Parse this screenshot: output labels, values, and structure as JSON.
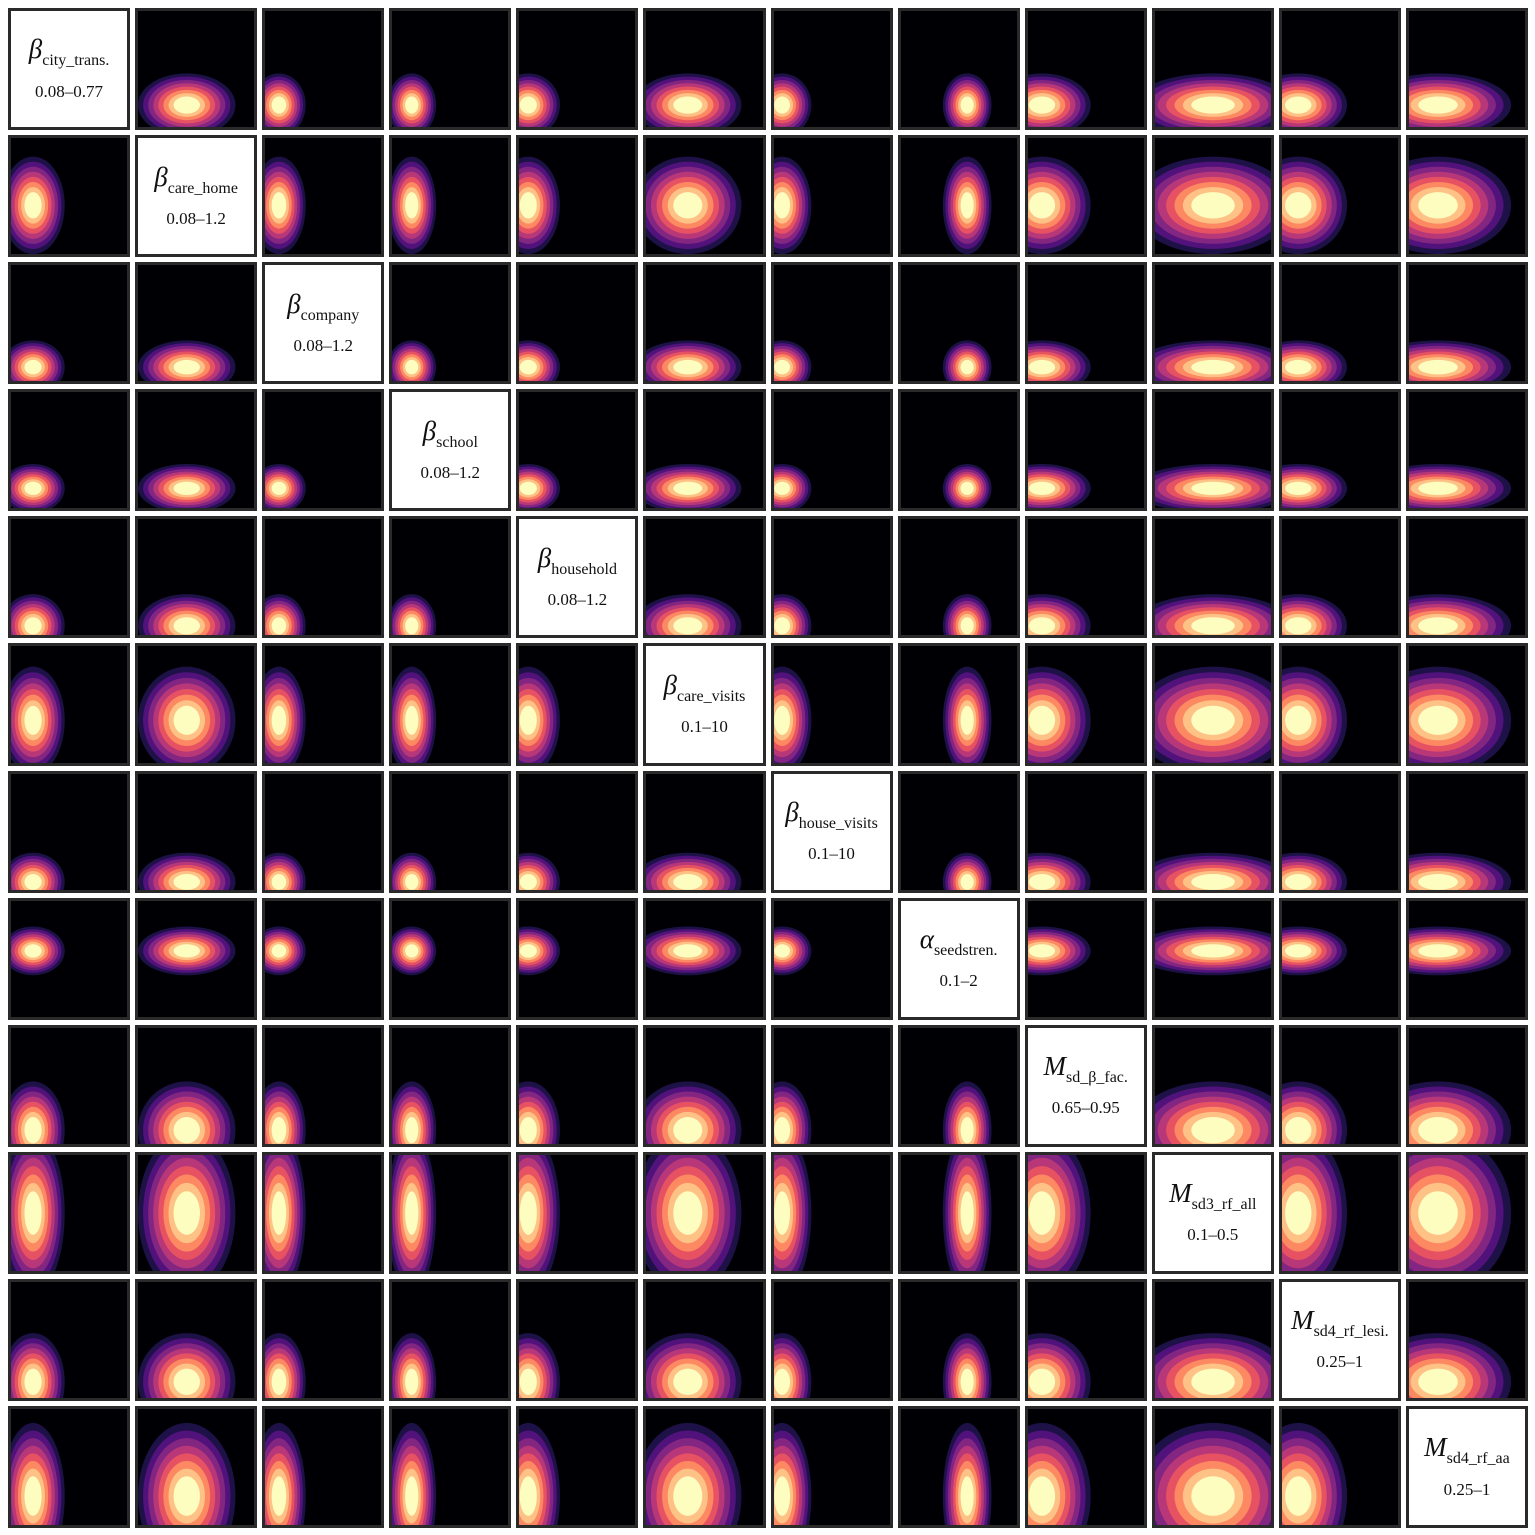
{
  "chart_data": {
    "type": "heatmap",
    "title": "",
    "layout": "pairwise matrix of 2-D posterior density contours; diagonal cells show parameter name and prior range",
    "colormap": [
      "#000004",
      "#1d1147",
      "#51127c",
      "#822681",
      "#b73779",
      "#e75263",
      "#fc8961",
      "#fec287",
      "#fcfdbf"
    ],
    "grid": false,
    "parameters": [
      {
        "symbol": "β",
        "subscript": "city_trans.",
        "range_label": "0.08–0.77",
        "range": [
          0.08,
          0.77
        ]
      },
      {
        "symbol": "β",
        "subscript": "care_home",
        "range_label": "0.08–1.2",
        "range": [
          0.08,
          1.2
        ]
      },
      {
        "symbol": "β",
        "subscript": "company",
        "range_label": "0.08–1.2",
        "range": [
          0.08,
          1.2
        ]
      },
      {
        "symbol": "β",
        "subscript": "school",
        "range_label": "0.08–1.2",
        "range": [
          0.08,
          1.2
        ]
      },
      {
        "symbol": "β",
        "subscript": "household",
        "range_label": "0.08–1.2",
        "range": [
          0.08,
          1.2
        ]
      },
      {
        "symbol": "β",
        "subscript": "care_visits",
        "range_label": "0.1–10",
        "range": [
          0.1,
          10
        ]
      },
      {
        "symbol": "β",
        "subscript": "house_visits",
        "range_label": "0.1–10",
        "range": [
          0.1,
          10
        ]
      },
      {
        "symbol": "α",
        "subscript": "seedstren.",
        "range_label": "0.1–2",
        "range": [
          0.1,
          2
        ]
      },
      {
        "symbol": "M",
        "subscript": "sd_β_fac.",
        "range_label": "0.65–0.95",
        "range": [
          0.65,
          0.95
        ]
      },
      {
        "symbol": "M",
        "subscript": "sd3_rf_all",
        "range_label": "0.1–0.5",
        "range": [
          0.1,
          0.5
        ]
      },
      {
        "symbol": "M",
        "subscript": "sd4_rf_lesi.",
        "range_label": "0.25–1",
        "range": [
          0.25,
          1
        ]
      },
      {
        "symbol": "M",
        "subscript": "sd4_rf_aa",
        "range_label": "0.25–1",
        "range": [
          0.25,
          1
        ]
      }
    ],
    "marginal_peaks": [
      {
        "mean": 0.19,
        "sd": 0.13
      },
      {
        "mean": 0.42,
        "sd": 0.2
      },
      {
        "mean": 0.12,
        "sd": 0.11
      },
      {
        "mean": 0.17,
        "sd": 0.1
      },
      {
        "mean": 0.08,
        "sd": 0.13
      },
      {
        "mean": 0.36,
        "sd": 0.22
      },
      {
        "mean": 0.07,
        "sd": 0.12
      },
      {
        "mean": 0.57,
        "sd": 0.1
      },
      {
        "mean": 0.12,
        "sd": 0.2
      },
      {
        "mean": 0.5,
        "sd": 0.33
      },
      {
        "mean": 0.14,
        "sd": 0.2
      },
      {
        "mean": 0.25,
        "sd": 0.3
      }
    ]
  }
}
